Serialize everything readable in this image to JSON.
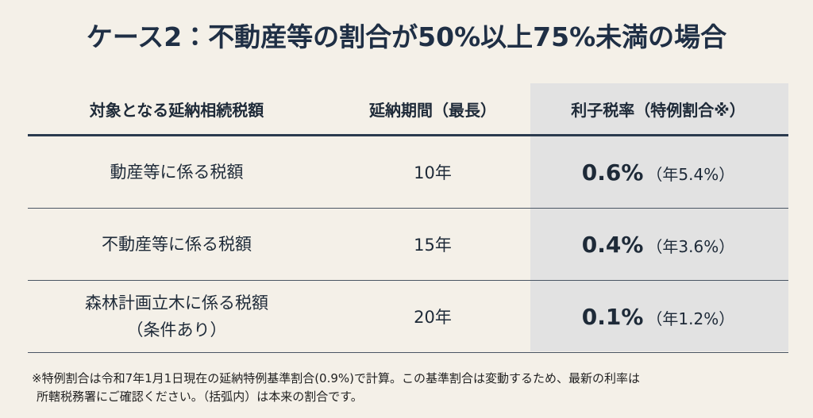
{
  "header": {
    "title": "ケース2：不動産等の割合が50%以上75%未満の場合"
  },
  "table": {
    "columns": [
      "対象となる延納相続税額",
      "延納期間（最長）",
      "利子税率（特例割合※）"
    ],
    "rows": [
      {
        "label": [
          "動産等に係る税額"
        ],
        "period": "10年",
        "rate": "0.6%",
        "annual": "（年5.4%）"
      },
      {
        "label": [
          "不動産等に係る税額"
        ],
        "period": "15年",
        "rate": "0.4%",
        "annual": "（年3.6%）"
      },
      {
        "label": [
          "森林計画立木に係る税額",
          "（条件あり）"
        ],
        "period": "20年",
        "rate": "0.1%",
        "annual": "（年1.2%）"
      }
    ]
  },
  "footnote": [
    "※特例割合は令和7年1月1日現在の延納特例基準割合(0.9%)で計算。この基準割合は変動するため、最新の利率は",
    "所轄税務署にご確認ください。（括弧内）は本来の割合です。"
  ]
}
